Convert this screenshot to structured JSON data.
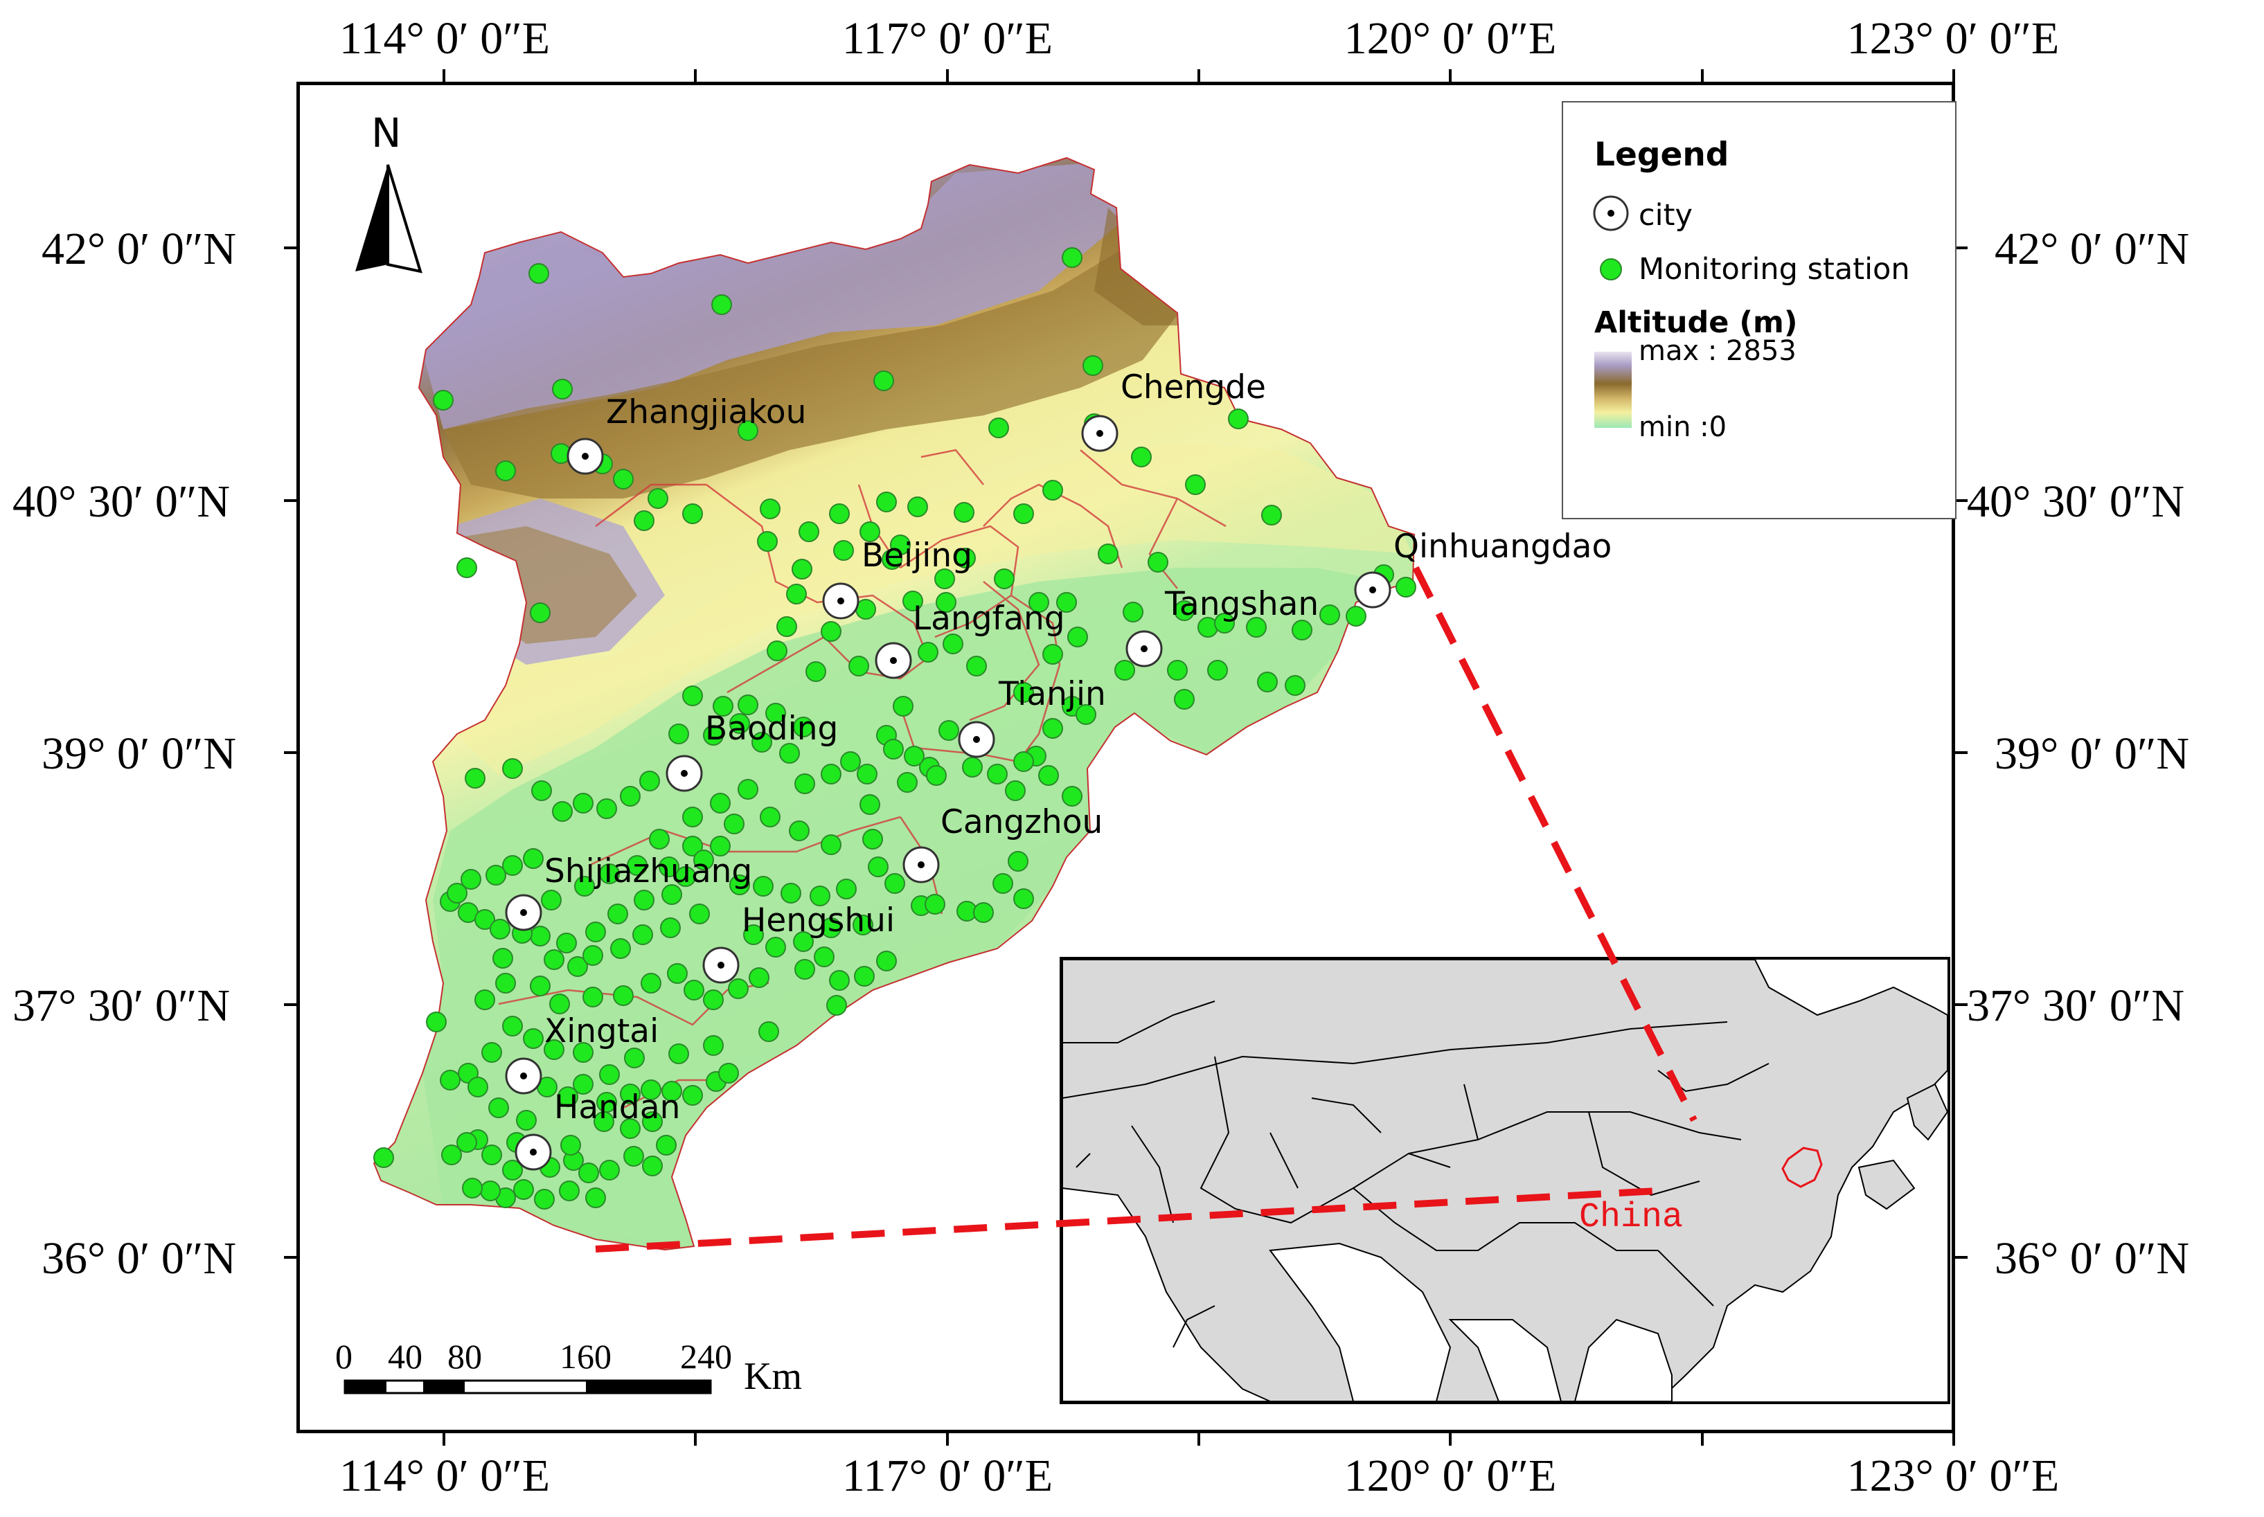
{
  "longitude_labels": [
    "114° 0′ 0″E",
    "117° 0′ 0″E",
    "120° 0′ 0″E",
    "123° 0′ 0″E"
  ],
  "latitude_labels": [
    "42° 0′ 0″N",
    "40° 30′ 0″N",
    "39° 0′ 0″N",
    "37° 30′ 0″N",
    "36° 0′ 0″N"
  ],
  "north_arrow": {
    "letter": "N"
  },
  "legend": {
    "title": "Legend",
    "city_label": "city",
    "station_label": "Monitoring station",
    "altitude_title": "Altitude  (m)",
    "max_label": "max : 2853",
    "min_label": "min :0"
  },
  "cities": [
    {
      "name": "Zhangjiakou"
    },
    {
      "name": "Chengde"
    },
    {
      "name": "Beijing"
    },
    {
      "name": "Qinhuangdao"
    },
    {
      "name": "Langfang"
    },
    {
      "name": "Tangshan"
    },
    {
      "name": "Tianjin"
    },
    {
      "name": "Baoding"
    },
    {
      "name": "Cangzhou"
    },
    {
      "name": "Shijiazhuang"
    },
    {
      "name": "Hengshui"
    },
    {
      "name": "Xingtai"
    },
    {
      "name": "Handan"
    }
  ],
  "scale_bar": {
    "ticks": [
      "0",
      "40",
      "80",
      "160",
      "240"
    ],
    "unit": "Km"
  },
  "inset": {
    "country_label": "China"
  },
  "colors": {
    "station": "#1fe81f",
    "highland": "#a99cc4",
    "mountain": "#9a7a38",
    "hills": "#eeec9a",
    "plain": "#a8e8a0",
    "inset_land": "#d9d9d9",
    "highlight": "#e8141a"
  }
}
